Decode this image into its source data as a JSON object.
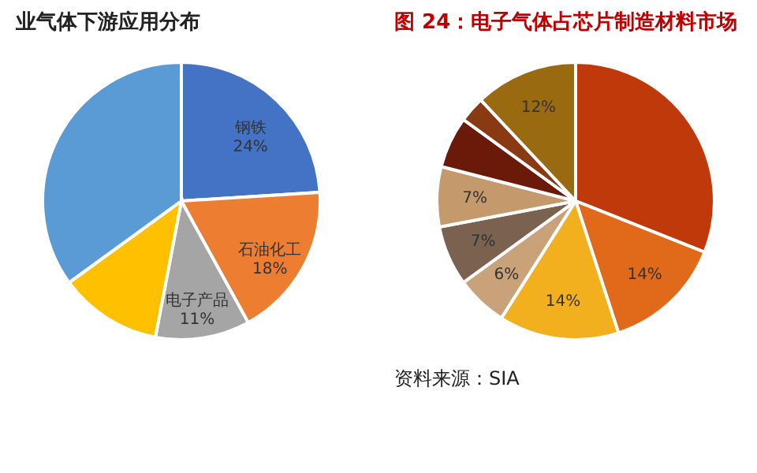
{
  "chart_data": [
    {
      "type": "pie",
      "title": "业气体下游应用分布",
      "categories": [
        "钢铁",
        "石油化工",
        "电子产品",
        null,
        null
      ],
      "values": [
        24,
        18,
        11,
        12,
        35
      ],
      "colors": [
        "#4472c4",
        "#ed7d31",
        "#a5a5a5",
        "#ffc000",
        "#5b9bd5"
      ],
      "value_labels": [
        "24%",
        "18%",
        "11%",
        null,
        null
      ]
    },
    {
      "type": "pie",
      "title": "图 24：电子气体占芯片制造材料市场",
      "categories": [
        null,
        null,
        null,
        null,
        null,
        null,
        null,
        null,
        null
      ],
      "values": [
        31,
        14,
        14,
        6,
        7,
        7,
        6,
        3,
        12
      ],
      "colors": [
        "#c0390b",
        "#e06a1a",
        "#f2b01e",
        "#c9a27a",
        "#7a6150",
        "#c49a6c",
        "#6b1a0a",
        "#8a3a12",
        "#9a6a10"
      ],
      "value_labels": [
        null,
        "14%",
        "14%",
        "6%",
        "7%",
        "7%",
        null,
        null,
        "12%"
      ],
      "annotations": [
        "资料来源：SIA"
      ]
    }
  ]
}
